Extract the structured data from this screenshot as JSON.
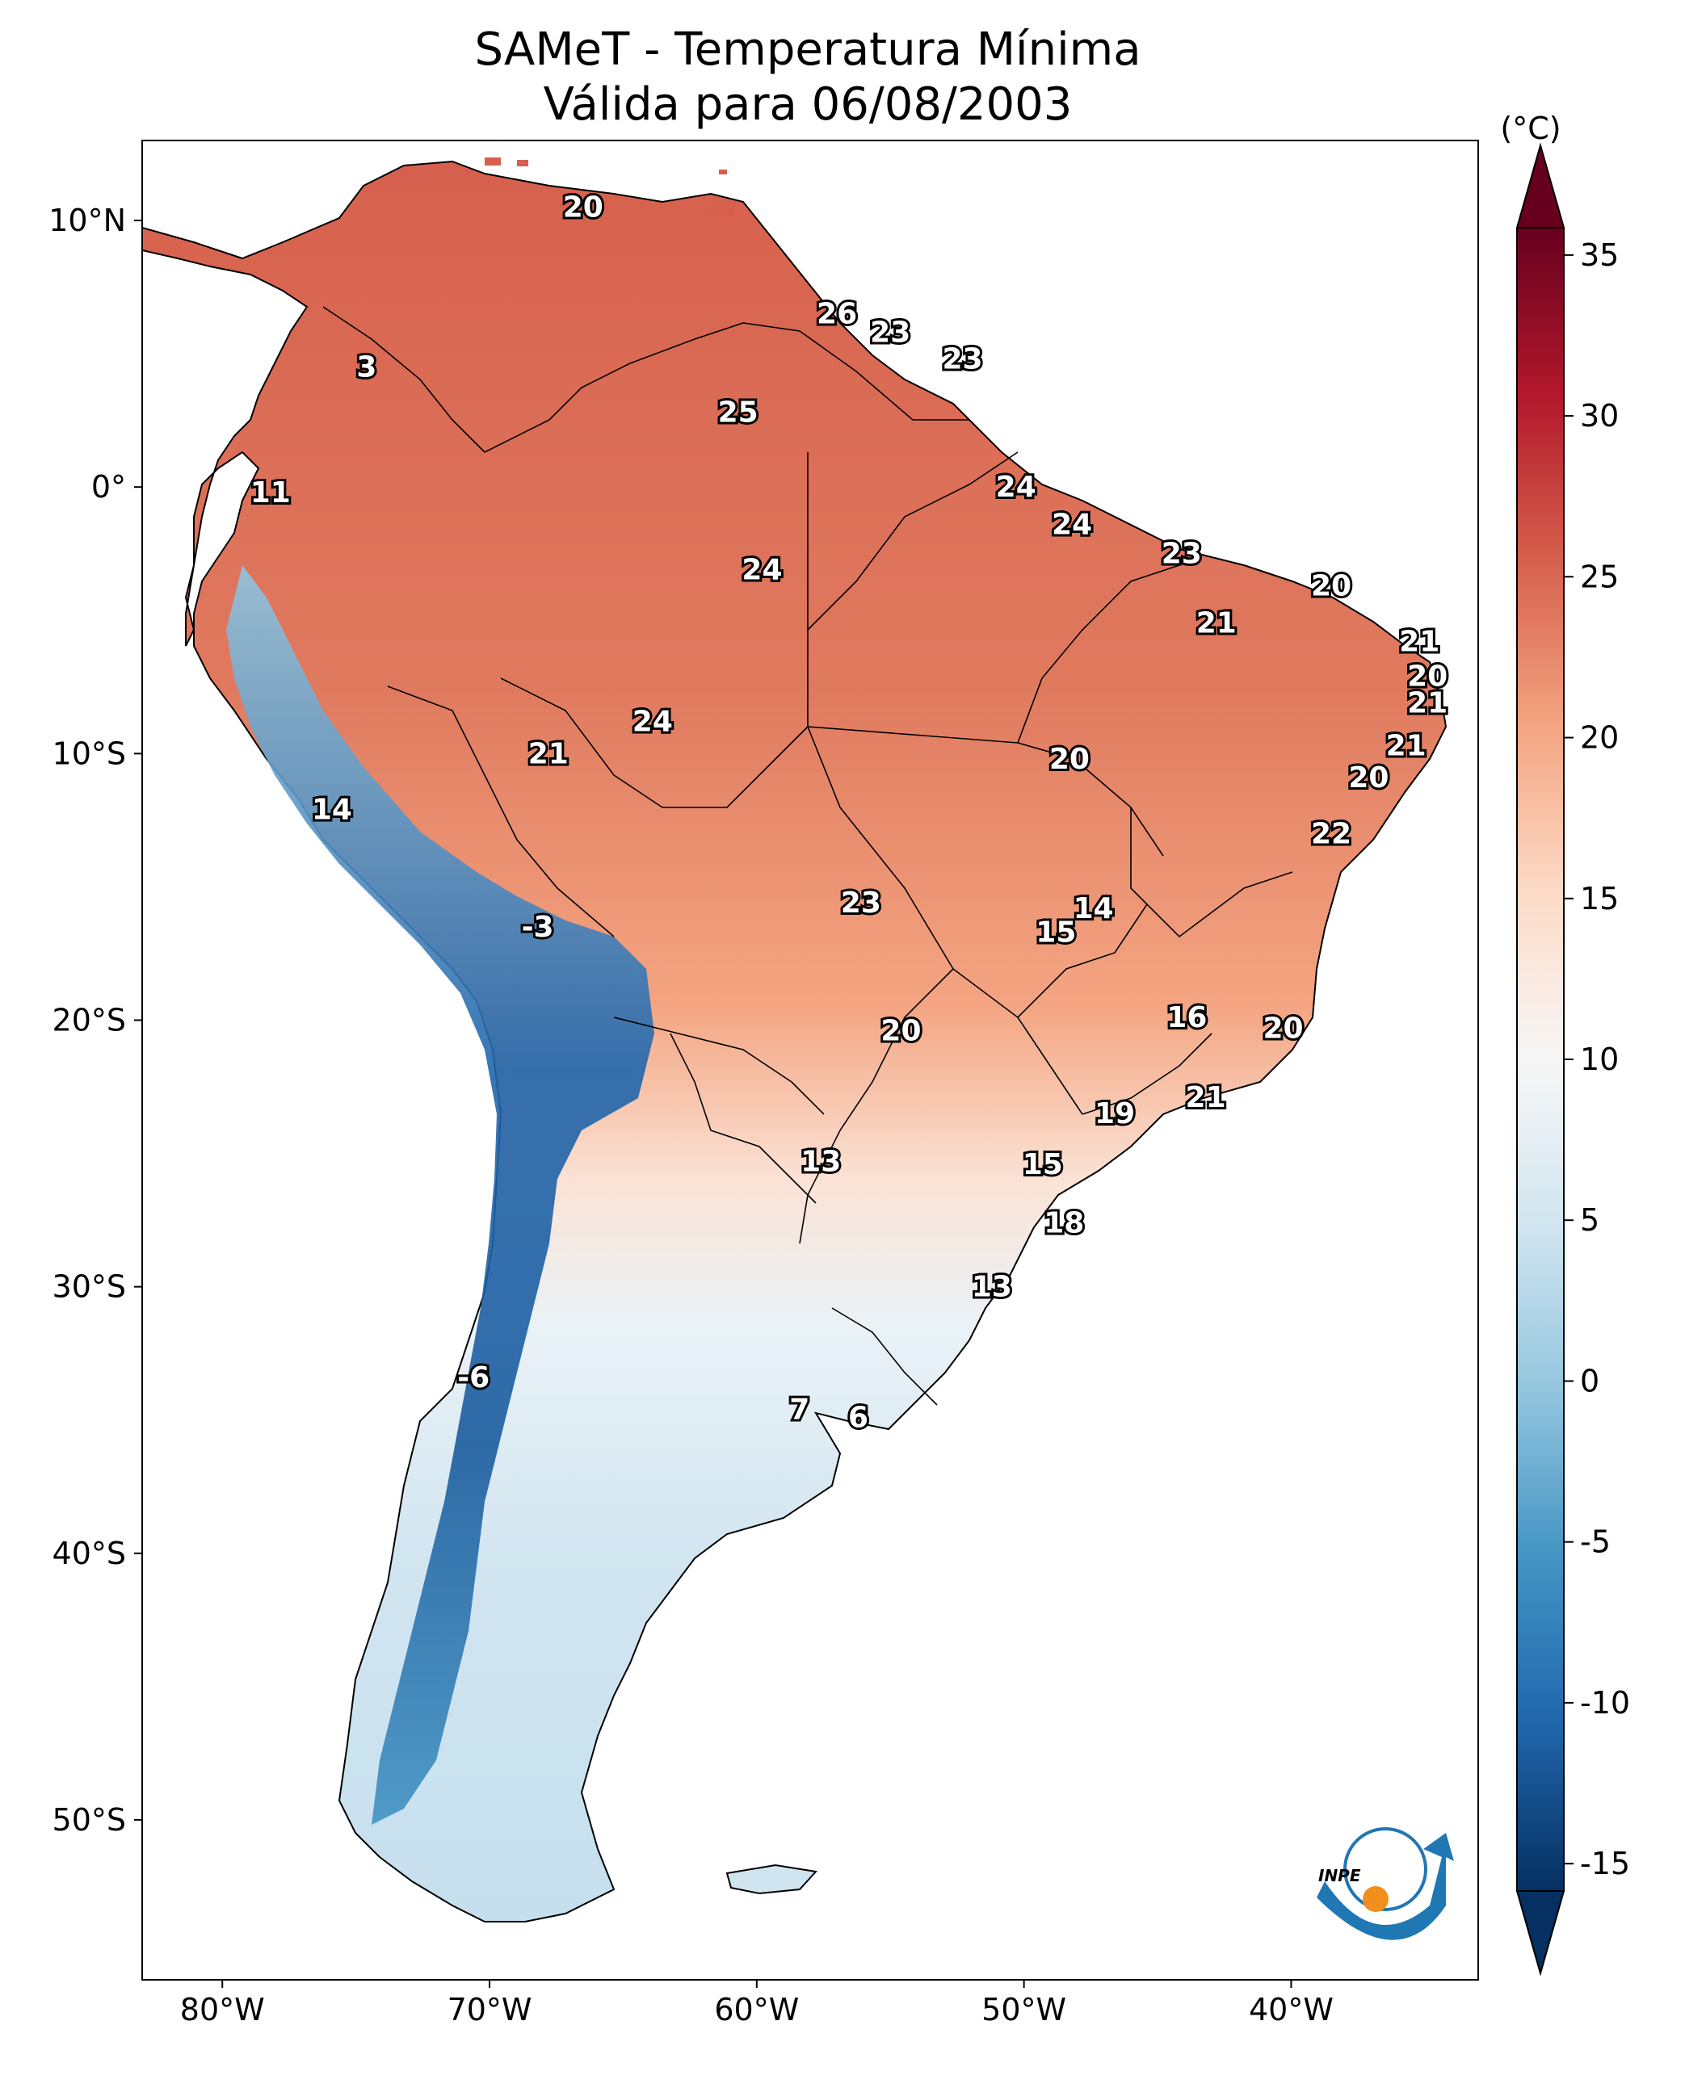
{
  "title": {
    "line1": "SAMeT - Temperatura Mínima",
    "line2": "Válida para 06/08/2003"
  },
  "map": {
    "region": "South America",
    "lon_range": [
      -83,
      -33
    ],
    "lat_range": [
      -56,
      13
    ],
    "lon_ticks": [
      {
        "lon": -80,
        "label": "80°W"
      },
      {
        "lon": -70,
        "label": "70°W"
      },
      {
        "lon": -60,
        "label": "60°W"
      },
      {
        "lon": -50,
        "label": "50°W"
      },
      {
        "lon": -40,
        "label": "40°W"
      }
    ],
    "lat_ticks": [
      {
        "lat": 10,
        "label": "10°N"
      },
      {
        "lat": 0,
        "label": "0°"
      },
      {
        "lat": -10,
        "label": "10°S"
      },
      {
        "lat": -20,
        "label": "20°S"
      },
      {
        "lat": -30,
        "label": "30°S"
      },
      {
        "lat": -40,
        "label": "40°S"
      },
      {
        "lat": -50,
        "label": "50°S"
      }
    ],
    "station_values": [
      {
        "lon": -66.5,
        "lat": 10.5,
        "label": "20"
      },
      {
        "lon": -74.6,
        "lat": 4.5,
        "label": "3"
      },
      {
        "lon": -57,
        "lat": 6.5,
        "label": "26"
      },
      {
        "lon": -55,
        "lat": 5.8,
        "label": "23"
      },
      {
        "lon": -52.3,
        "lat": 4.8,
        "label": "23"
      },
      {
        "lon": -60.7,
        "lat": 2.8,
        "label": "25"
      },
      {
        "lon": -78.2,
        "lat": -0.2,
        "label": "11"
      },
      {
        "lon": -50.3,
        "lat": 0,
        "label": "24"
      },
      {
        "lon": -48.2,
        "lat": -1.4,
        "label": "24"
      },
      {
        "lon": -59.8,
        "lat": -3.1,
        "label": "24"
      },
      {
        "lon": -44.1,
        "lat": -2.5,
        "label": "23"
      },
      {
        "lon": -38.5,
        "lat": -3.7,
        "label": "20"
      },
      {
        "lon": -42.8,
        "lat": -5.1,
        "label": "21"
      },
      {
        "lon": -35.2,
        "lat": -5.8,
        "label": "21"
      },
      {
        "lon": -34.9,
        "lat": -7.1,
        "label": "20"
      },
      {
        "lon": -34.9,
        "lat": -8.1,
        "label": "21"
      },
      {
        "lon": -63.9,
        "lat": -8.8,
        "label": "24"
      },
      {
        "lon": -67.8,
        "lat": -10,
        "label": "21"
      },
      {
        "lon": -48.3,
        "lat": -10.2,
        "label": "20"
      },
      {
        "lon": -35.7,
        "lat": -9.7,
        "label": "21"
      },
      {
        "lon": -37.1,
        "lat": -10.9,
        "label": "20"
      },
      {
        "lon": -38.5,
        "lat": -13,
        "label": "22"
      },
      {
        "lon": -75.9,
        "lat": -12.1,
        "label": "14"
      },
      {
        "lon": -56.1,
        "lat": -15.6,
        "label": "23"
      },
      {
        "lon": -47.4,
        "lat": -15.8,
        "label": "14"
      },
      {
        "lon": -48.8,
        "lat": -16.7,
        "label": "15"
      },
      {
        "lon": -68.2,
        "lat": -16.5,
        "label": "-3"
      },
      {
        "lon": -43.9,
        "lat": -19.9,
        "label": "16"
      },
      {
        "lon": -40.3,
        "lat": -20.3,
        "label": "20"
      },
      {
        "lon": -54.6,
        "lat": -20.4,
        "label": "20"
      },
      {
        "lon": -43.2,
        "lat": -22.9,
        "label": "21"
      },
      {
        "lon": -46.6,
        "lat": -23.5,
        "label": "19"
      },
      {
        "lon": -57.6,
        "lat": -25.3,
        "label": "13"
      },
      {
        "lon": -49.3,
        "lat": -25.4,
        "label": "15"
      },
      {
        "lon": -48.5,
        "lat": -27.6,
        "label": "18"
      },
      {
        "lon": -51.2,
        "lat": -30,
        "label": "13"
      },
      {
        "lon": -70.6,
        "lat": -33.4,
        "label": "-6"
      },
      {
        "lon": -58.4,
        "lat": -34.6,
        "label": "7"
      },
      {
        "lon": -56.2,
        "lat": -34.9,
        "label": "6"
      }
    ],
    "logo_text": "INPE"
  },
  "colorbar": {
    "unit_label": "(°C)",
    "min": -15,
    "max": 35,
    "ticks": [
      "35",
      "30",
      "25",
      "20",
      "15",
      "10",
      "5",
      "0",
      "-5",
      "-10",
      "-15"
    ],
    "colors": {
      "-15": "#053061",
      "-10": "#2166ac",
      "-5": "#4393c3",
      "0": "#92c5de",
      "5": "#d1e5f0",
      "10": "#f7f7f7",
      "15": "#fddbc7",
      "20": "#f4a582",
      "25": "#d6604d",
      "30": "#b2182b",
      "35": "#67001f"
    }
  }
}
